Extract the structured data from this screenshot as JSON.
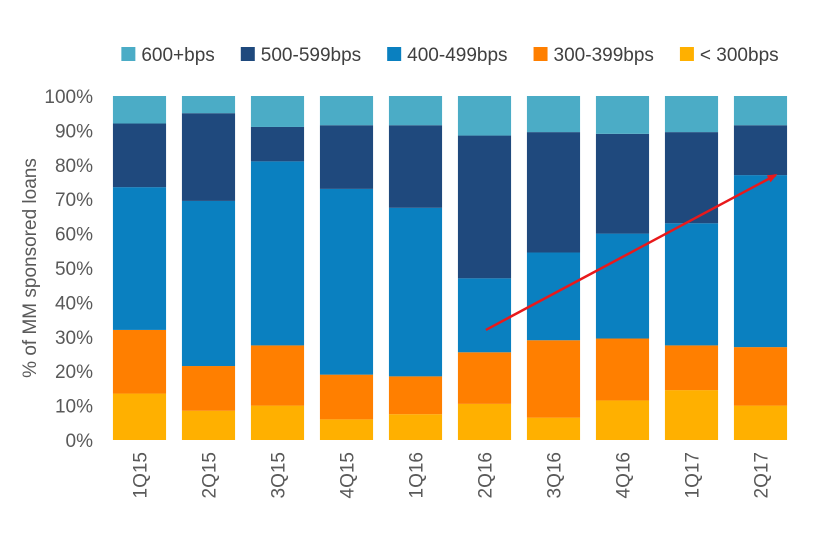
{
  "chart_data": {
    "type": "bar",
    "stacked": true,
    "percent_stacked": true,
    "categories": [
      "1Q15",
      "2Q15",
      "3Q15",
      "4Q15",
      "1Q16",
      "2Q16",
      "3Q16",
      "4Q16",
      "1Q17",
      "2Q17"
    ],
    "series": [
      {
        "name": "< 300bps",
        "color": "#FFB000",
        "values": [
          13.5,
          8.5,
          10,
          6,
          7.5,
          10.5,
          6.5,
          11.5,
          14.5,
          10
        ]
      },
      {
        "name": "300-399bps",
        "color": "#FF7F00",
        "values": [
          18.5,
          13,
          17.5,
          13,
          11,
          15,
          22.5,
          18,
          13,
          17
        ]
      },
      {
        "name": "400-499bps",
        "color": "#0A80C0",
        "values": [
          41.5,
          48,
          53.5,
          54,
          49,
          21.5,
          25.5,
          30.5,
          35.5,
          50
        ]
      },
      {
        "name": "500-599bps",
        "color": "#1F497D",
        "values": [
          18.5,
          25.5,
          10,
          18.5,
          24,
          41.5,
          35,
          29,
          26.5,
          14.5
        ]
      },
      {
        "name": "600+bps",
        "color": "#4BACC6",
        "values": [
          8,
          5,
          9,
          8.5,
          8.5,
          11.5,
          10.5,
          11,
          10.5,
          8.5
        ]
      }
    ],
    "legend_order": [
      "600+bps",
      "500-599bps",
      "400-499bps",
      "300-399bps",
      "< 300bps"
    ],
    "legend_position": "top",
    "ylabel": "% of MM sponsored loans",
    "xlabel": "",
    "ylim": [
      0,
      100
    ],
    "yticks": [
      0,
      10,
      20,
      30,
      40,
      50,
      60,
      70,
      80,
      90,
      100
    ],
    "ytick_format": "percent",
    "grid": false,
    "annotations": [
      {
        "type": "arrow",
        "color": "#E8191B",
        "from": {
          "x": "2Q16",
          "y": 32
        },
        "to": {
          "x": "2Q17",
          "y": 77
        }
      }
    ]
  }
}
